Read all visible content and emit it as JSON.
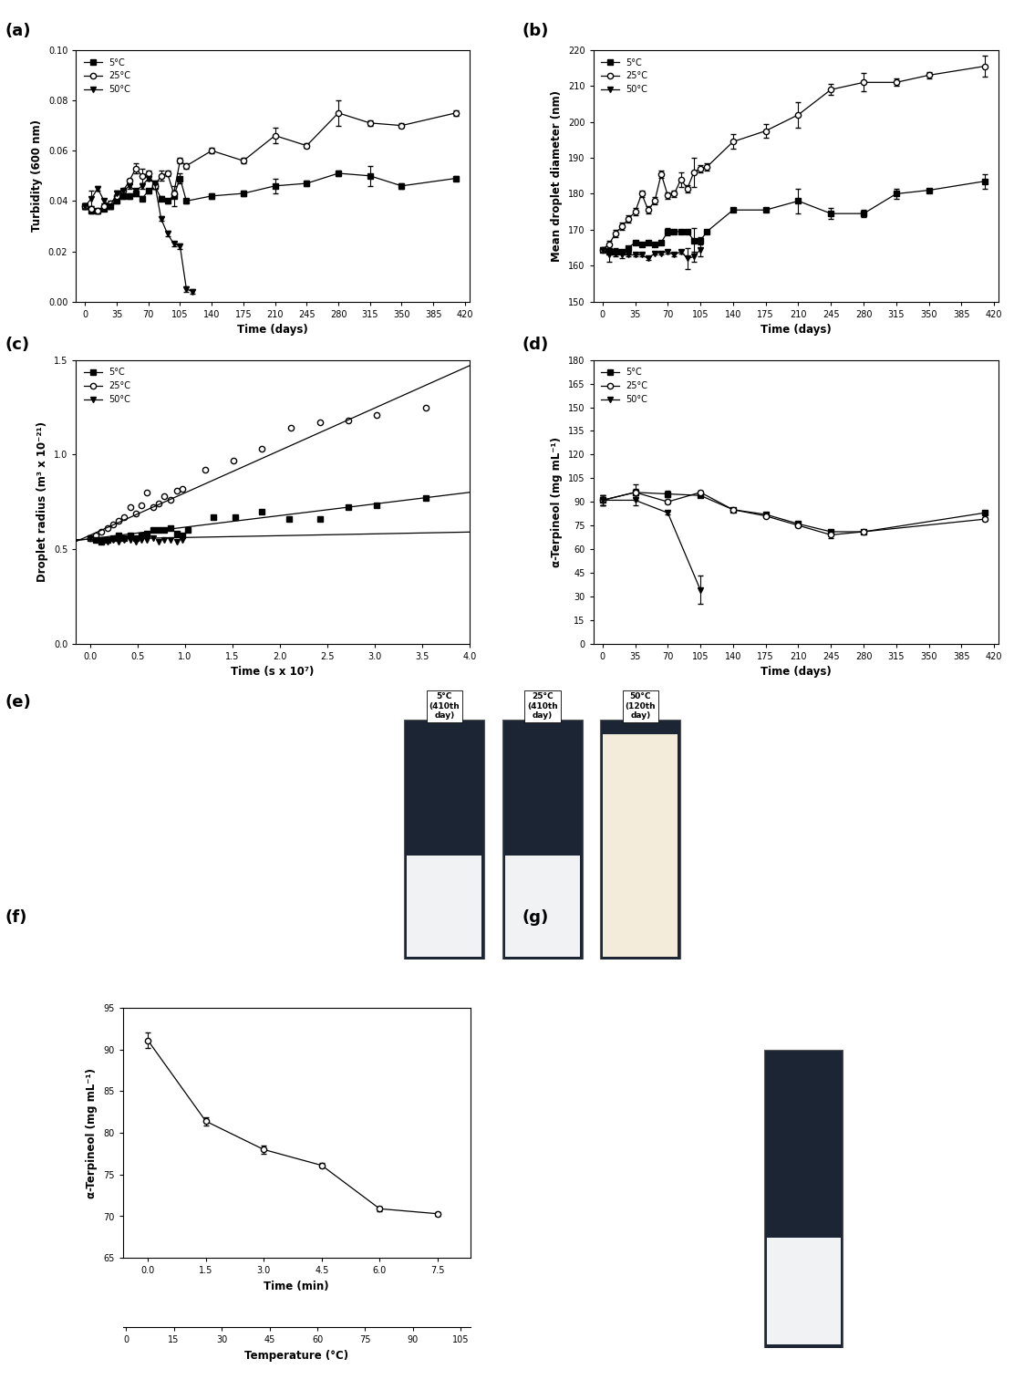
{
  "chart_data": [
    {
      "type": "line",
      "panel": "(a)",
      "x_label": "Time (days)",
      "y_label": "Turbidity (600 nm)",
      "xlim": [
        -10,
        425
      ],
      "xticks": [
        0,
        35,
        70,
        105,
        140,
        175,
        210,
        245,
        280,
        315,
        350,
        385,
        420
      ],
      "ylim": [
        0,
        0.1
      ],
      "yticks": [
        {
          "value": 0.0,
          "label": "0.00"
        },
        {
          "value": 0.02,
          "label": "0.02"
        },
        {
          "value": 0.04,
          "label": "0.04"
        },
        {
          "value": 0.06,
          "label": "0.06"
        },
        {
          "value": 0.08,
          "label": "0.08"
        },
        {
          "value": 0.1,
          "label": "0.10"
        }
      ],
      "legend": "upper left",
      "series": [
        {
          "name": "5°C",
          "color": "#000000",
          "marker": "square",
          "x": [
            0,
            7,
            14,
            21,
            28,
            35,
            42,
            49,
            56,
            63,
            70,
            77,
            84,
            91,
            98,
            105,
            112,
            140,
            175,
            210,
            245,
            280,
            315,
            350,
            410
          ],
          "values": [
            0.038,
            0.036,
            0.036,
            0.037,
            0.038,
            0.04,
            0.042,
            0.042,
            0.043,
            0.041,
            0.044,
            0.046,
            0.041,
            0.04,
            0.042,
            0.049,
            0.04,
            0.042,
            0.043,
            0.046,
            0.047,
            0.051,
            0.05,
            0.046,
            0.049
          ],
          "errors": [
            0.001,
            0.001,
            0.001,
            0.001,
            0.001,
            0.001,
            0.001,
            0.001,
            0.001,
            0.001,
            0.001,
            0.001,
            0.001,
            0.001,
            0.004,
            0.002,
            0.001,
            0.001,
            0.001,
            0.003,
            0.001,
            0.001,
            0.004,
            0.001,
            0.001
          ]
        },
        {
          "name": "25°C",
          "color": "#000000",
          "marker": "circle_open",
          "x": [
            0,
            7,
            14,
            21,
            28,
            35,
            42,
            49,
            56,
            63,
            70,
            77,
            84,
            91,
            98,
            105,
            112,
            140,
            175,
            210,
            245,
            280,
            315,
            350,
            410
          ],
          "values": [
            0.038,
            0.037,
            0.036,
            0.038,
            0.039,
            0.042,
            0.044,
            0.048,
            0.053,
            0.05,
            0.051,
            0.046,
            0.05,
            0.051,
            0.043,
            0.056,
            0.054,
            0.06,
            0.056,
            0.066,
            0.062,
            0.075,
            0.071,
            0.07,
            0.075
          ],
          "errors": [
            0.001,
            0.001,
            0.001,
            0.001,
            0.001,
            0.002,
            0.001,
            0.001,
            0.002,
            0.003,
            0.001,
            0.001,
            0.002,
            0.001,
            0.001,
            0.001,
            0.001,
            0.001,
            0.001,
            0.003,
            0.001,
            0.005,
            0.001,
            0.001,
            0.001
          ]
        },
        {
          "name": "50°C",
          "color": "#000000",
          "marker": "triangle_down",
          "x": [
            0,
            7,
            14,
            21,
            28,
            35,
            42,
            49,
            56,
            63,
            70,
            77,
            84,
            91,
            98,
            105,
            112,
            119
          ],
          "values": [
            0.038,
            0.041,
            0.045,
            0.04,
            0.038,
            0.043,
            0.044,
            0.046,
            0.044,
            0.046,
            0.049,
            0.047,
            0.033,
            0.027,
            0.023,
            0.022,
            0.005,
            0.004
          ],
          "errors": [
            0.001,
            0.003,
            0.001,
            0.001,
            0.001,
            0.001,
            0.001,
            0.001,
            0.001,
            0.001,
            0.001,
            0.001,
            0.001,
            0.001,
            0.001,
            0.001,
            0.001,
            0.001
          ]
        }
      ]
    },
    {
      "type": "line",
      "panel": "(b)",
      "x_label": "Time (days)",
      "y_label": "Mean droplet diameter (nm)",
      "xlim": [
        -10,
        425
      ],
      "xticks": [
        0,
        35,
        70,
        105,
        140,
        175,
        210,
        245,
        280,
        315,
        350,
        385,
        420
      ],
      "ylim": [
        150,
        220
      ],
      "yticks": [
        150,
        160,
        170,
        180,
        190,
        200,
        210,
        220
      ],
      "legend": "upper left",
      "series": [
        {
          "name": "5°C",
          "color": "#000000",
          "marker": "square",
          "x": [
            0,
            7,
            14,
            21,
            28,
            35,
            42,
            49,
            56,
            63,
            70,
            77,
            84,
            91,
            98,
            105,
            112,
            140,
            175,
            210,
            245,
            280,
            315,
            350,
            410
          ],
          "values": [
            164.5,
            164,
            164,
            164,
            165,
            166.5,
            166,
            166.5,
            166,
            166.5,
            169.5,
            169.5,
            169.5,
            169.5,
            167,
            167,
            169.5,
            175.5,
            175.5,
            178,
            174.5,
            174.5,
            180,
            181,
            183.5
          ],
          "errors": [
            0.5,
            1,
            1,
            0.5,
            0.5,
            0.5,
            0.5,
            0.5,
            0.5,
            0.5,
            1,
            0.5,
            0.5,
            0.5,
            3.5,
            1,
            0.5,
            0.5,
            0.5,
            3.5,
            1.5,
            1,
            1.5,
            0.5,
            2
          ]
        },
        {
          "name": "25°C",
          "color": "#000000",
          "marker": "circle_open",
          "x": [
            0,
            7,
            14,
            21,
            28,
            35,
            42,
            49,
            56,
            63,
            70,
            77,
            84,
            91,
            98,
            105,
            112,
            140,
            175,
            210,
            245,
            280,
            315,
            350,
            410
          ],
          "values": [
            164.5,
            166,
            169,
            171,
            173,
            175,
            180,
            175.5,
            178,
            185.5,
            179.5,
            180,
            184,
            181.5,
            186,
            187,
            187.5,
            194.5,
            197.5,
            202,
            209,
            211,
            211,
            213,
            215.5
          ],
          "errors": [
            0.5,
            1,
            1,
            1,
            1,
            1,
            1,
            1,
            1,
            1,
            1,
            1,
            2,
            1,
            4,
            1,
            1,
            2,
            2,
            3.5,
            1.5,
            2.5,
            1,
            1,
            3
          ]
        },
        {
          "name": "50°C",
          "color": "#000000",
          "marker": "triangle_down",
          "x": [
            0,
            7,
            14,
            21,
            28,
            35,
            42,
            49,
            56,
            63,
            70,
            77,
            84,
            91,
            98,
            105
          ],
          "values": [
            164.5,
            163,
            163.5,
            163,
            163,
            163,
            163,
            162,
            163.5,
            163.5,
            164,
            163,
            164,
            162,
            162.5,
            164.5
          ],
          "errors": [
            0.5,
            2,
            1,
            1,
            0.5,
            0.5,
            0.5,
            0.5,
            0.5,
            0.5,
            0.5,
            0.5,
            0.5,
            3,
            1.5,
            2
          ]
        }
      ]
    },
    {
      "type": "scatter",
      "panel": "(c)",
      "x_label": "Time (s x 10⁷)",
      "y_label": "Droplet radius (m³ x 10⁻²¹)",
      "xlim": [
        -0.15,
        4.0
      ],
      "xticks": [
        0.0,
        0.5,
        1.0,
        1.5,
        2.0,
        2.5,
        3.0,
        3.5,
        4.0
      ],
      "ylim": [
        0.0,
        1.5
      ],
      "yticks": [
        0.0,
        0.5,
        1.0,
        1.5
      ],
      "legend": "upper left",
      "series": [
        {
          "name": "5°C",
          "color": "#000000",
          "marker": "square",
          "x": [
            0,
            0.06,
            0.12,
            0.18,
            0.24,
            0.3,
            0.36,
            0.42,
            0.48,
            0.54,
            0.6,
            0.66,
            0.72,
            0.78,
            0.85,
            0.91,
            0.97,
            1.03,
            1.3,
            1.53,
            1.81,
            2.1,
            2.42,
            2.72,
            3.02,
            3.54
          ],
          "values": [
            0.56,
            0.55,
            0.54,
            0.55,
            0.56,
            0.57,
            0.56,
            0.57,
            0.56,
            0.57,
            0.58,
            0.6,
            0.6,
            0.6,
            0.61,
            0.58,
            0.57,
            0.6,
            0.67,
            0.67,
            0.7,
            0.66,
            0.66,
            0.72,
            0.73,
            0.77
          ],
          "fit": {
            "x": [
              -0.15,
              4.0
            ],
            "values": [
              0.545,
              0.8
            ]
          }
        },
        {
          "name": "25°C",
          "color": "#000000",
          "marker": "circle_open",
          "x": [
            0,
            0.06,
            0.12,
            0.18,
            0.24,
            0.3,
            0.36,
            0.42,
            0.48,
            0.54,
            0.6,
            0.66,
            0.72,
            0.78,
            0.85,
            0.91,
            0.97,
            1.21,
            1.51,
            1.81,
            2.12,
            2.42,
            2.72,
            3.02,
            3.54
          ],
          "values": [
            0.56,
            0.57,
            0.59,
            0.61,
            0.63,
            0.65,
            0.67,
            0.72,
            0.69,
            0.73,
            0.8,
            0.72,
            0.74,
            0.78,
            0.76,
            0.81,
            0.82,
            0.92,
            0.97,
            1.03,
            1.14,
            1.17,
            1.18,
            1.21,
            1.25
          ],
          "fit": {
            "x": [
              -0.15,
              4.0
            ],
            "values": [
              0.54,
              1.47
            ]
          }
        },
        {
          "name": "50°C",
          "color": "#000000",
          "marker": "triangle_down",
          "x": [
            0,
            0.06,
            0.12,
            0.18,
            0.24,
            0.3,
            0.36,
            0.42,
            0.48,
            0.54,
            0.6,
            0.66,
            0.72,
            0.78,
            0.85,
            0.91,
            0.97
          ],
          "values": [
            0.56,
            0.55,
            0.55,
            0.54,
            0.55,
            0.54,
            0.55,
            0.55,
            0.54,
            0.55,
            0.55,
            0.56,
            0.54,
            0.55,
            0.55,
            0.54,
            0.55
          ],
          "fit": {
            "x": [
              -0.15,
              4.0
            ],
            "values": [
              0.55,
              0.59
            ]
          }
        }
      ]
    },
    {
      "type": "line",
      "panel": "(d)",
      "x_label": "Time (days)",
      "y_label": "α-Terpineol (mg mL⁻¹)",
      "xlim": [
        -10,
        425
      ],
      "xticks": [
        0,
        35,
        70,
        105,
        140,
        175,
        210,
        245,
        280,
        315,
        350,
        385,
        420
      ],
      "ylim": [
        0,
        180
      ],
      "yticks": [
        0,
        15,
        30,
        45,
        60,
        75,
        90,
        105,
        120,
        135,
        150,
        165,
        180
      ],
      "legend": "upper left",
      "series": [
        {
          "name": "5°C",
          "color": "#000000",
          "marker": "square",
          "x": [
            0,
            35,
            70,
            105,
            140,
            175,
            210,
            245,
            280,
            410
          ],
          "values": [
            91,
            96,
            95,
            94,
            85,
            82,
            76,
            71,
            71,
            83
          ],
          "errors": [
            3,
            5,
            2,
            1,
            1,
            1,
            1,
            1,
            1,
            1
          ]
        },
        {
          "name": "25°C",
          "color": "#000000",
          "marker": "circle_open",
          "x": [
            0,
            35,
            70,
            105,
            140,
            175,
            210,
            245,
            280,
            410
          ],
          "values": [
            91,
            96,
            90,
            96,
            85,
            81,
            75,
            69,
            71,
            79
          ],
          "errors": [
            3,
            2,
            1,
            1,
            1,
            1,
            1,
            2,
            1,
            1
          ]
        },
        {
          "name": "50°C",
          "color": "#000000",
          "marker": "triangle_down",
          "x": [
            0,
            35,
            70,
            105
          ],
          "values": [
            91,
            91,
            83,
            34
          ],
          "errors": [
            3,
            3,
            1,
            9
          ]
        }
      ]
    },
    {
      "type": "image",
      "panel": "(e)",
      "vials": [
        {
          "label": "5°C\n(410th\nday)",
          "color": "#f1f2f4"
        },
        {
          "label": "25°C\n(410th\nday)",
          "color": "#f1f2f4"
        },
        {
          "label": "50°C\n(120th\nday)",
          "color": "#f3ecdb"
        }
      ]
    },
    {
      "type": "line",
      "panel": "(f)",
      "x_label": "Time (min)",
      "y_label": "α-Terpineol (mg mL⁻¹)",
      "xlim": [
        -0.65,
        8.35
      ],
      "xticks": [
        0.0,
        1.5,
        3.0,
        4.5,
        6.0,
        7.5
      ],
      "ylim": [
        65,
        95
      ],
      "yticks": [
        65,
        70,
        75,
        80,
        85,
        90,
        95
      ],
      "x2_label": "Temperature (°C)",
      "x2lim": [
        -1,
        108
      ],
      "x2ticks": [
        0,
        15,
        30,
        45,
        60,
        75,
        90,
        105
      ],
      "series": [
        {
          "color": "#000000",
          "marker": "circle_open",
          "x": [
            0.0,
            1.5,
            3.0,
            4.5,
            6.0,
            7.5
          ],
          "values": [
            91.1,
            81.4,
            78.0,
            76.1,
            70.9,
            70.3
          ],
          "errors": [
            0.9,
            0.5,
            0.5,
            0.3,
            0.3,
            0.2
          ]
        }
      ]
    },
    {
      "type": "image",
      "panel": "(g)",
      "vials": [
        {
          "color": "#f1f2f4"
        }
      ]
    }
  ]
}
